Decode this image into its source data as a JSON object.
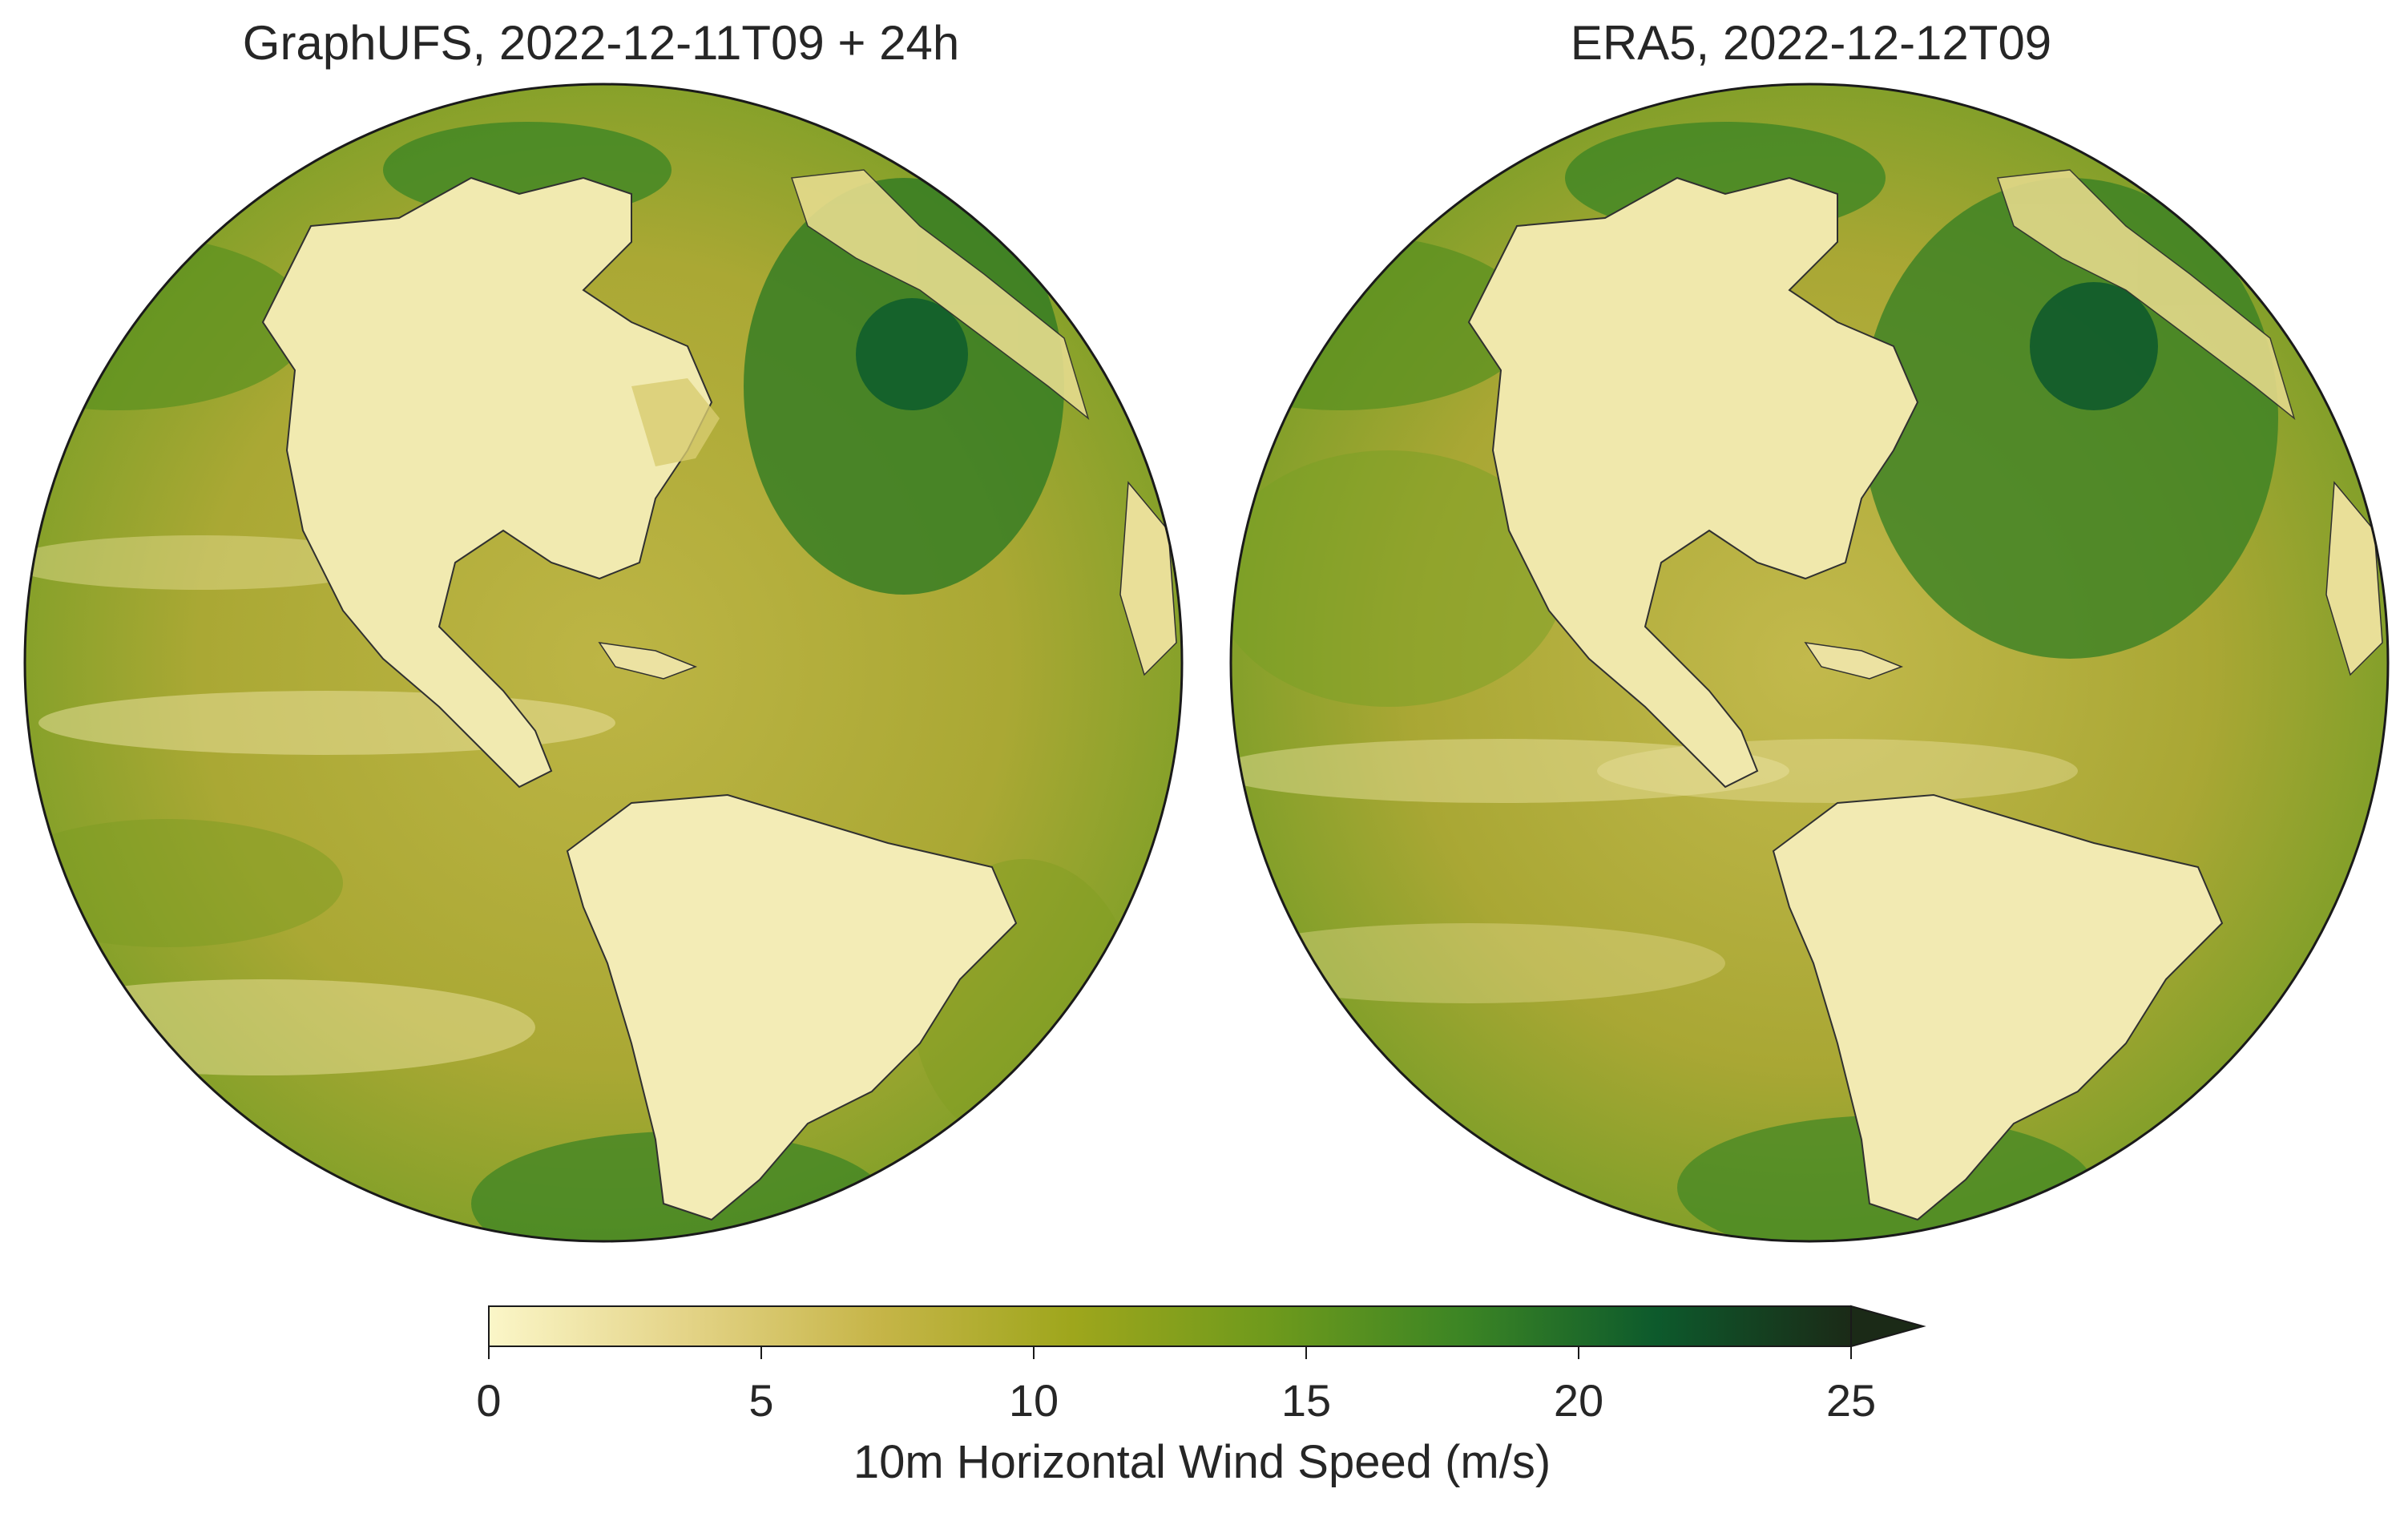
{
  "panels": [
    {
      "title": "GraphUFS, 2022-12-11T09 + 24h",
      "field_style": "coarse"
    },
    {
      "title": "ERA5, 2022-12-12T09",
      "field_style": "fine"
    }
  ],
  "map": {
    "projection": "orthographic",
    "features": [
      "coastlines",
      "wind-speed-field"
    ]
  },
  "colorbar": {
    "label": "10m Horizontal Wind Speed (m/s)",
    "ticks": [
      "0",
      "5",
      "10",
      "15",
      "20",
      "25"
    ],
    "range": [
      0,
      25
    ],
    "extend": "max",
    "colors": [
      "#fbf6c8",
      "#e4d488",
      "#c6b548",
      "#9ea61c",
      "#6f9a1c",
      "#3c8524",
      "#0d5a2c",
      "#1b2a17"
    ]
  }
}
